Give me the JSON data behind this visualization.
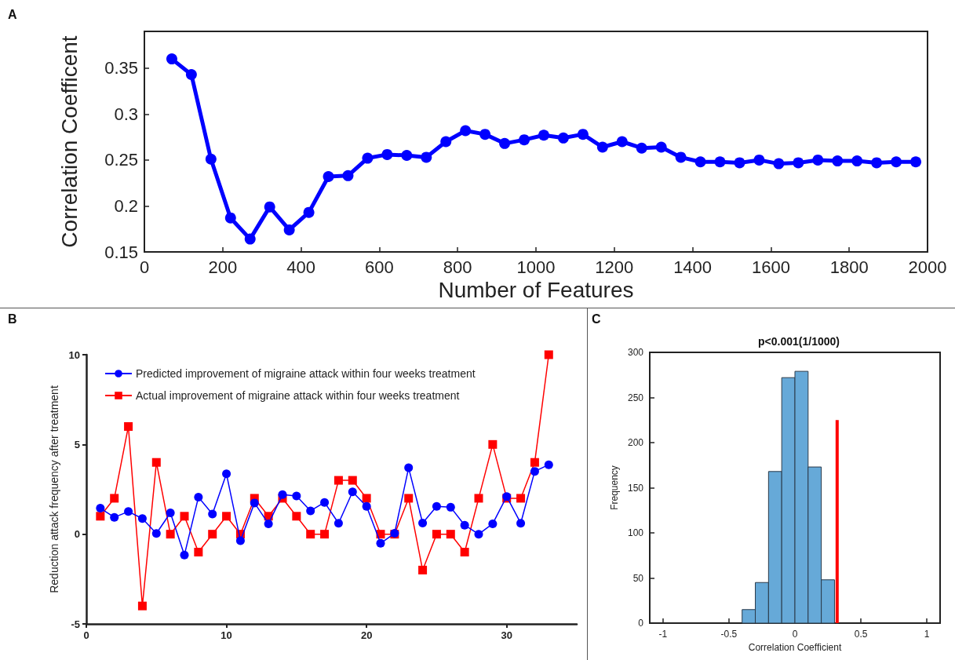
{
  "chart_data": [
    {
      "type": "line",
      "xlabel": "Number of Features",
      "ylabel": "Correlation Coefficent",
      "annotations": [
        "A"
      ],
      "marker": "circle",
      "grid": false,
      "legend": false,
      "xlim": [
        0,
        2000
      ],
      "xticks": [
        0,
        200,
        400,
        600,
        800,
        1000,
        1200,
        1400,
        1600,
        1800,
        2000
      ],
      "ylim": [
        0.15,
        0.39
      ],
      "yticks": [
        0.15,
        0.2,
        0.25,
        0.3,
        0.35
      ],
      "x": [
        70,
        120,
        170,
        220,
        270,
        320,
        370,
        420,
        470,
        520,
        570,
        620,
        670,
        720,
        770,
        820,
        870,
        920,
        970,
        1020,
        1070,
        1120,
        1170,
        1220,
        1270,
        1320,
        1370,
        1420,
        1470,
        1520,
        1570,
        1620,
        1670,
        1720,
        1770,
        1820,
        1870,
        1920,
        1970
      ],
      "series": [
        {
          "color": "#0000ff",
          "values": [
            0.36,
            0.343,
            0.251,
            0.187,
            0.164,
            0.199,
            0.174,
            0.193,
            0.232,
            0.233,
            0.252,
            0.256,
            0.255,
            0.253,
            0.27,
            0.282,
            0.278,
            0.268,
            0.272,
            0.277,
            0.274,
            0.278,
            0.264,
            0.27,
            0.263,
            0.264,
            0.253,
            0.248,
            0.248,
            0.247,
            0.25,
            0.246,
            0.247,
            0.25,
            0.249,
            0.249,
            0.247,
            0.248,
            0.248
          ]
        }
      ]
    },
    {
      "type": "line",
      "ylabel": "Reduction attack frequency after treatment",
      "annotations": [
        "B"
      ],
      "grid": false,
      "legend": "top left",
      "xlim": [
        0,
        35
      ],
      "xticks": [
        0,
        10,
        20,
        30
      ],
      "ylim": [
        -5,
        10
      ],
      "yticks": [
        -5,
        0,
        5,
        10
      ],
      "x": [
        1,
        2,
        3,
        4,
        5,
        6,
        7,
        8,
        9,
        10,
        11,
        12,
        13,
        14,
        15,
        16,
        17,
        18,
        19,
        20,
        21,
        22,
        23,
        24,
        25,
        26,
        27,
        28,
        29,
        30,
        31,
        32,
        33
      ],
      "series": [
        {
          "name": "Predicted improvement of migraine attack within four weeks treatment",
          "color": "#0000ff",
          "marker": "circle",
          "values": [
            1.45,
            0.94,
            1.26,
            0.87,
            0.04,
            1.19,
            -1.16,
            2.06,
            1.12,
            3.36,
            -0.36,
            1.74,
            0.58,
            2.2,
            2.13,
            1.3,
            1.77,
            0.61,
            2.36,
            1.55,
            -0.51,
            0.05,
            3.7,
            0.62,
            1.55,
            1.5,
            0.5,
            0.0,
            0.58,
            2.1,
            0.61,
            3.5,
            3.87
          ]
        },
        {
          "name": "Actual improvement of migraine attack within four weeks treatment",
          "color": "#ff0000",
          "marker": "square",
          "values": [
            1,
            2,
            6,
            -4,
            4,
            0,
            1,
            -1,
            0,
            1,
            0,
            2,
            1,
            2,
            1,
            0,
            0,
            3,
            3,
            2,
            0,
            0,
            2,
            -2,
            0,
            0,
            -1,
            2,
            5,
            2,
            2,
            4,
            10
          ]
        }
      ]
    },
    {
      "type": "histogram",
      "title": "p<0.001(1/1000)",
      "xlabel": "Correlation Coefficient",
      "ylabel": "Frequency",
      "annotations": [
        "C"
      ],
      "grid": false,
      "legend": false,
      "xlim": [
        -1.1,
        1.1
      ],
      "xticks": [
        -1,
        -0.5,
        0,
        0.5,
        1
      ],
      "ylim": [
        0,
        300
      ],
      "yticks": [
        0,
        50,
        100,
        150,
        200,
        250,
        300
      ],
      "bins": [
        -0.4,
        -0.3,
        -0.2,
        -0.1,
        0,
        0.1,
        0.2,
        0.3
      ],
      "values": [
        15,
        45,
        168,
        272,
        279,
        173,
        48
      ],
      "color": "#66a9d8",
      "series": [
        {
          "type": "line",
          "color": "#ff0000",
          "marker": "none",
          "x": [
            0.32,
            0.32
          ],
          "values": [
            0,
            225
          ]
        }
      ]
    }
  ]
}
